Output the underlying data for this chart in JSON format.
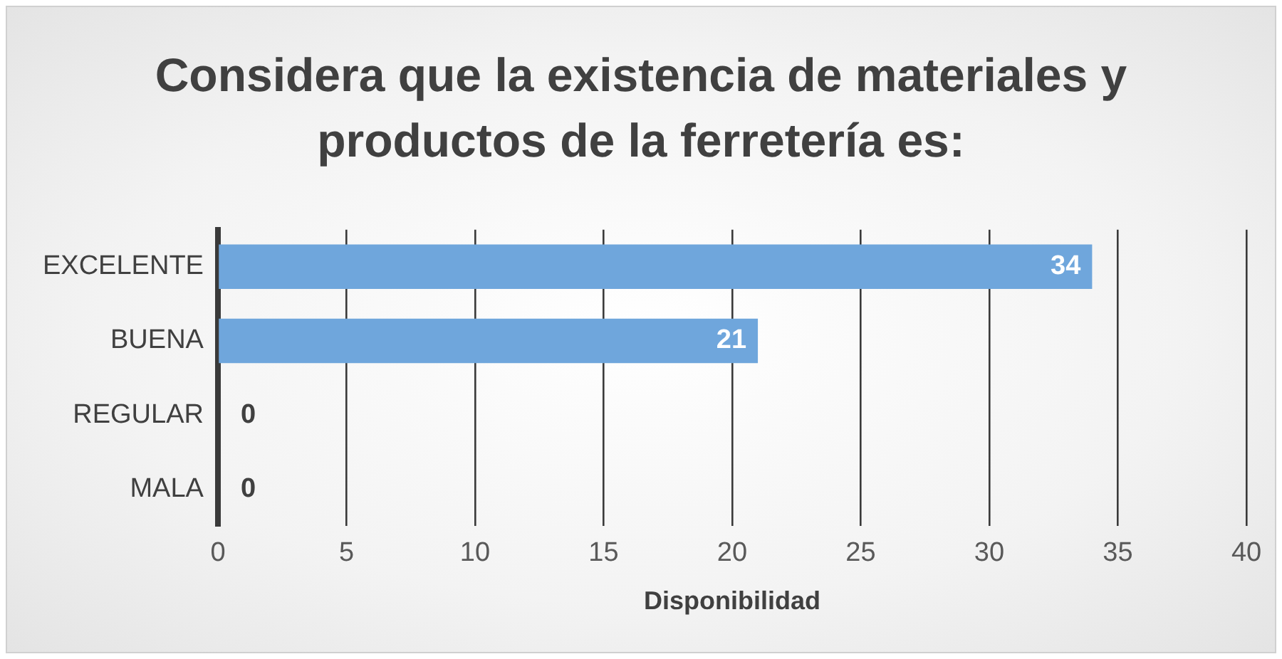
{
  "chart_data": {
    "type": "bar",
    "orientation": "horizontal",
    "title": "Considera que la existencia de materiales y productos de la ferretería es:",
    "xlabel": "Disponibilidad",
    "categories": [
      "EXCELENTE",
      "BUENA",
      "REGULAR",
      "MALA"
    ],
    "values": [
      34,
      21,
      0,
      0
    ],
    "color": "#6fa6dc",
    "xlim": [
      0,
      40
    ],
    "xticks": [
      0,
      5,
      10,
      15,
      20,
      25,
      30,
      35,
      40
    ],
    "grid": "x",
    "data_labels": true,
    "legend": false
  }
}
